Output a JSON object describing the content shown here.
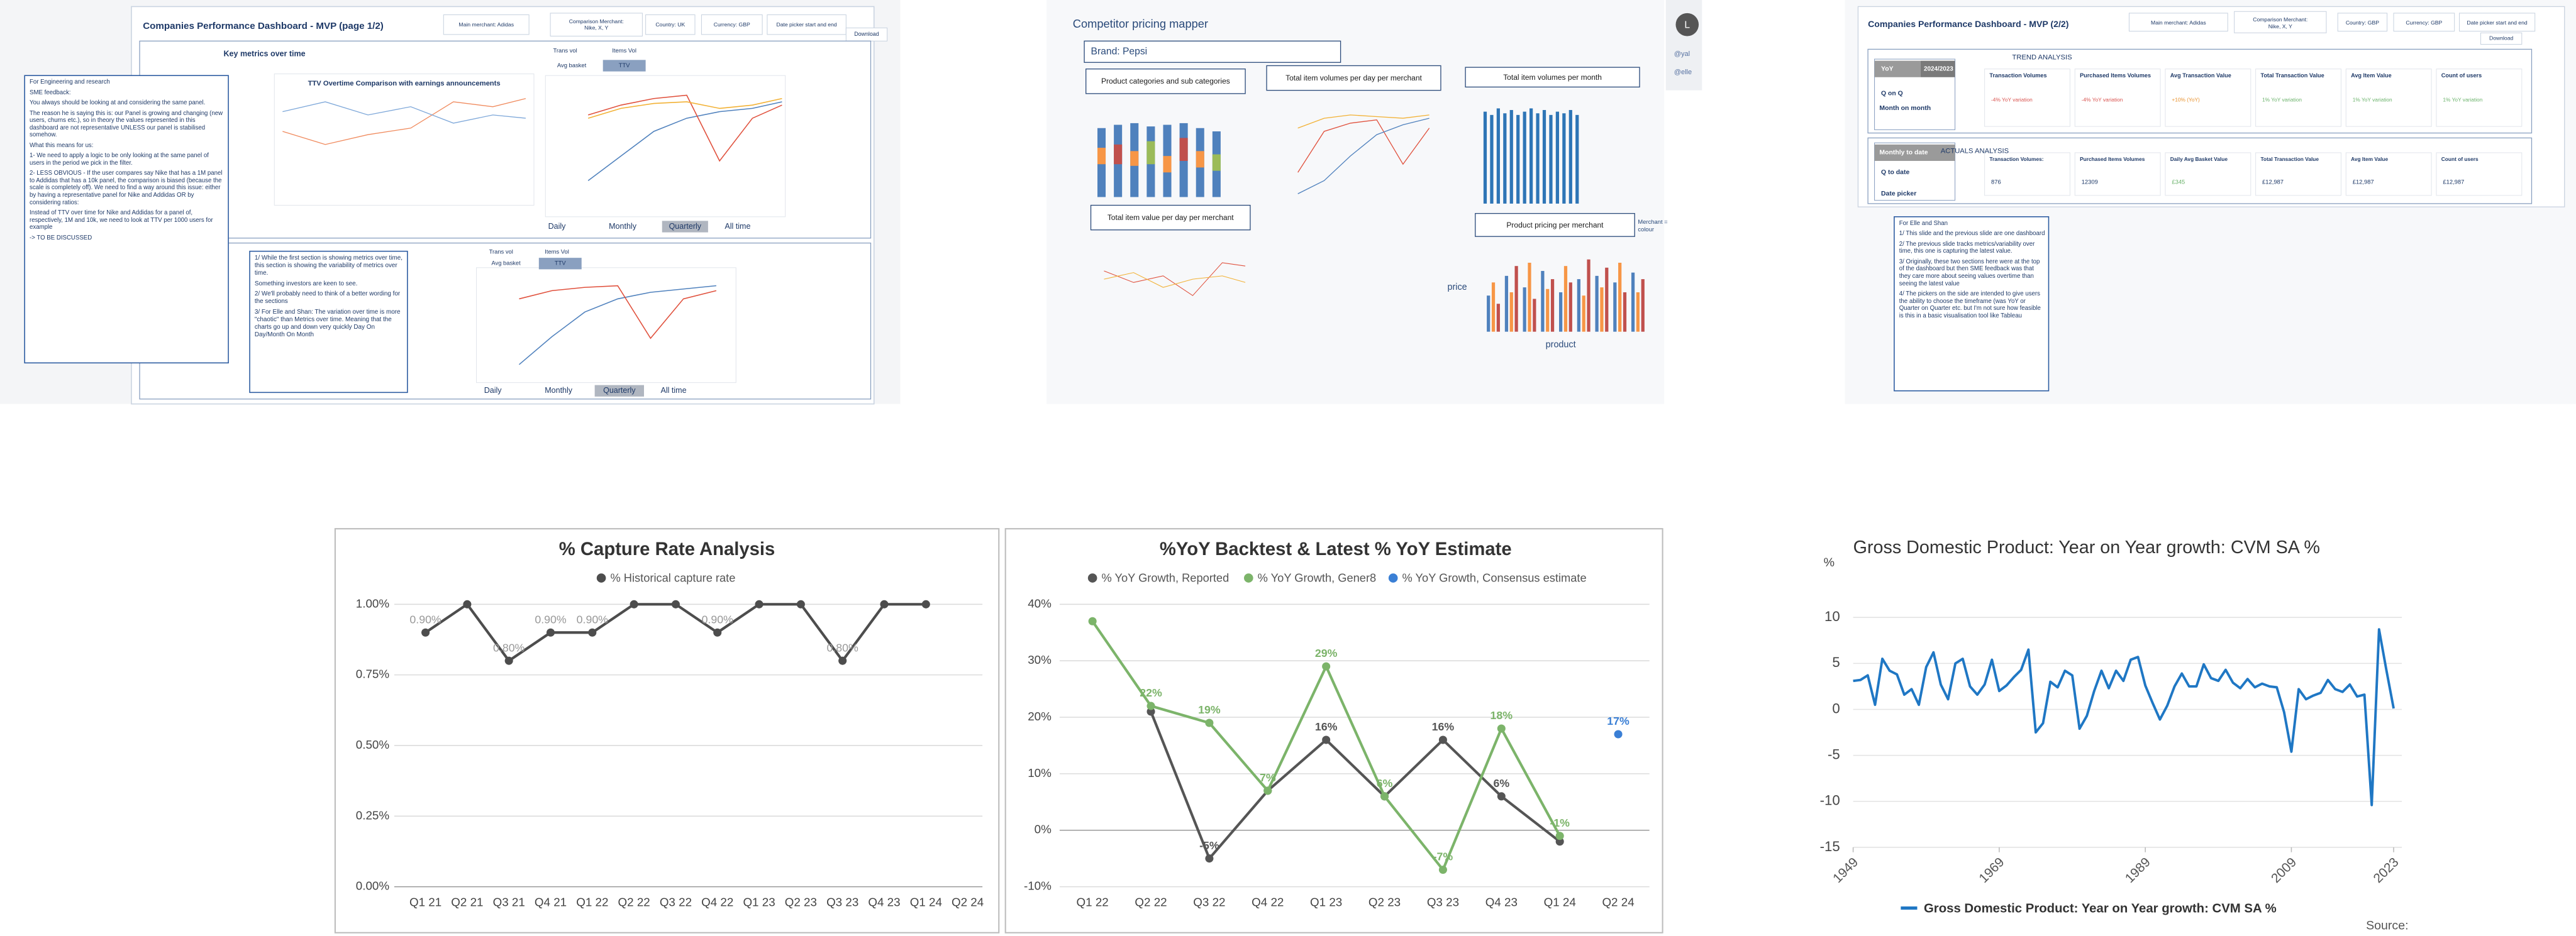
{
  "page1": {
    "title": "Companies Performance Dashboard - MVP (page 1/2)",
    "filters": [
      "Main merchant: Adidas",
      [
        "Comparison Merchant:",
        "Nike, X, Y"
      ],
      "Country: UK",
      "Currency: GBP",
      "Date picker start and end"
    ],
    "download": "Download",
    "section_title": "Key metrics over time",
    "chart_title": "TTV Overtime Comparison with earnings announcements",
    "toggles": [
      "Trans vol",
      "Items Vol",
      "Avg basket",
      "TTV"
    ],
    "periods": [
      "Daily",
      "Monthly",
      "Quarterly",
      "All time"
    ],
    "engineering_note": [
      "For Engineering and research",
      "SME feedback:",
      "You always should be looking at and considering the same panel.",
      "The reason he is saying this is: our Panel is growing and changing (new users, churns etc.), so in theory the values represented in this dashboard are not representative UNLESS our panel is stabilised somehow.",
      "What this means for us:",
      "1- We need to apply a logic to be only looking at the same panel of users in the period we pick in the filter.",
      "2- LESS OBVIOUS - If the user compares say Nike that has a 1M panel to Addidas that has a 10k panel, the comparison is biased (because the scale is completely off). We need to find a way around this issue: either by having a representative panel for Nike and Addidas OR by considering ratios:",
      "Instead of TTV over time for Nike and Addidas for a panel of, respectively, 1M and 10k, we need to look at TTV per 1000 users for example",
      "-> TO BE DISCUSSED"
    ],
    "variability_note": [
      "1/ While the first section is showing metrics over time, this section is showing the variability of metrics over time.",
      "Something investors are keen to see.",
      "2/ We'll probably need to think of a better wording for the sections",
      "3/ For Elle and Shan: The variation over time is more \"chaotic\" than Metrics over time. Meaning that the charts go up and down very quickly Day On Day/Month On Month"
    ]
  },
  "pricing": {
    "title": "Competitor pricing mapper",
    "brand": "Brand: Pepsi",
    "chart_titles": [
      "Product categories and sub categories",
      "Total item volumes per day per merchant",
      "Total item volumes per month",
      "Total item value per day per merchant",
      "Product pricing per merchant"
    ],
    "note": "Merchant = colour",
    "y_label": "price",
    "x_label": "product",
    "avatar": "L",
    "mentions": [
      "@yal",
      "@elle"
    ]
  },
  "page2": {
    "title": "Companies Performance Dashboard - MVP (2/2)",
    "filters": [
      "Main merchant: Adidas",
      [
        "Comparison Merchant:",
        "Nike, X, Y"
      ],
      "Country: GBP",
      "Currency: GBP",
      "Date picker start and end"
    ],
    "download": "Download",
    "trend": {
      "title": "TREND ANALYSIS",
      "periods": [
        "YoY",
        "2024/2023",
        "Q on Q",
        "Month on month"
      ],
      "metrics": [
        {
          "name": "Transaction Volumes",
          "value": "-4% YoY variation",
          "color": "#d9534f"
        },
        {
          "name": "Purchased Items Volumes",
          "value": "-4% YoY variation",
          "color": "#d9534f"
        },
        {
          "name": "Avg Transaction Value",
          "value": "+10% (YoY)",
          "color": "#e8922e"
        },
        {
          "name": "Total Transaction Value",
          "value": "1% YoY variation",
          "color": "#6cb36c"
        },
        {
          "name": "Avg Item Value",
          "value": "1% YoY variation",
          "color": "#6cb36c"
        },
        {
          "name": "Count of users",
          "value": "1% YoY variation",
          "color": "#6cb36c"
        }
      ]
    },
    "actuals": {
      "title": "ACTUALS ANALYSIS",
      "periods": [
        "Monthly to date",
        "Q to date",
        "Date picker"
      ],
      "metrics": [
        {
          "name": "Transaction Volumes:",
          "value": "876",
          "color": "#1f3a68"
        },
        {
          "name": "Purchased Items Volumes",
          "value": "12309",
          "color": "#1f3a68"
        },
        {
          "name": "Daily Avg Basket Value",
          "value": "£345",
          "color": "#6cb36c"
        },
        {
          "name": "Total Transaction Value",
          "value": "£12,987",
          "color": "#1f3a68"
        },
        {
          "name": "Avg Item Value",
          "value": "£12,987",
          "color": "#1f3a68"
        },
        {
          "name": "Count of users",
          "value": "£12,987",
          "color": "#1f3a68"
        }
      ]
    },
    "note": [
      "For Elle and Shan",
      "1/ This slide and the previous slide are one dashboard",
      "2/ The previous slide tracks metrics/variability over time, this one is capturing the latest value.",
      "3/ Originally, these two sections here were at the top of the dashboard but then SME feedback was that they care more about seeing values overtime than seeing the latest value",
      "4/ The pickers on the side are intended to give users the ability to choose the timeframe (was YoY or Quarter on Quarter etc. but I'm not sure how feasible is this in a basic visualisation tool like Tableau"
    ]
  },
  "chart_data": [
    {
      "type": "line",
      "title": "% Capture Rate Analysis",
      "categories": [
        "Q1 21",
        "Q2 21",
        "Q3 21",
        "Q4 21",
        "Q1 22",
        "Q2 22",
        "Q3 22",
        "Q4 22",
        "Q1 23",
        "Q2 23",
        "Q3 23",
        "Q4 23",
        "Q1 24",
        "Q2 24"
      ],
      "series": [
        {
          "name": "% Historical capture rate",
          "color": "#4d4d4d",
          "values": [
            0.9,
            1.0,
            0.8,
            0.9,
            0.9,
            1.0,
            1.0,
            0.9,
            1.0,
            1.0,
            0.8,
            1.0,
            1.0,
            null
          ],
          "value_labels": [
            "0.90%",
            null,
            "0.80%",
            "0.90%",
            "0.90%",
            null,
            null,
            "0.90%",
            null,
            null,
            "0.80%",
            null,
            null,
            null
          ]
        }
      ],
      "ylim": [
        0,
        1
      ],
      "yticks": [
        {
          "value": 0,
          "label": "0.00%"
        },
        {
          "value": 0.25,
          "label": "0.25%"
        },
        {
          "value": 0.5,
          "label": "0.50%"
        },
        {
          "value": 0.75,
          "label": "0.75%"
        },
        {
          "value": 1,
          "label": "1.00%"
        }
      ],
      "grid": true,
      "legend": "top"
    },
    {
      "type": "line",
      "title": "%YoY Backtest & Latest % YoY Estimate",
      "categories": [
        "Q1 22",
        "Q2 22",
        "Q3 22",
        "Q4 22",
        "Q1 23",
        "Q2 23",
        "Q3 23",
        "Q4 23",
        "Q1 24",
        "Q2 24"
      ],
      "series": [
        {
          "name": "% YoY Growth, Reported",
          "color": "#555555",
          "values": [
            null,
            21,
            -5,
            7,
            16,
            6,
            16,
            6,
            -2,
            null
          ],
          "value_labels": [
            null,
            null,
            "-5%",
            null,
            "16%",
            null,
            "16%",
            "6%",
            null,
            null
          ]
        },
        {
          "name": "% YoY Growth, Gener8",
          "color": "#7cb46a",
          "values": [
            37,
            22,
            19,
            7,
            29,
            6,
            -7,
            18,
            -1,
            null
          ],
          "value_labels": [
            null,
            "22%",
            "19%",
            "7%",
            "29%",
            "6%",
            "-7%",
            "18%",
            "-1%",
            null
          ]
        },
        {
          "name": "% YoY Growth, Consensus estimate",
          "color": "#3a7fd5",
          "values": [
            null,
            null,
            null,
            null,
            null,
            null,
            null,
            null,
            null,
            17
          ],
          "value_labels": [
            null,
            null,
            null,
            null,
            null,
            null,
            null,
            null,
            null,
            "17%"
          ]
        }
      ],
      "ylim": [
        -10,
        40
      ],
      "yticks": [
        {
          "value": -10,
          "label": "-10%"
        },
        {
          "value": 0,
          "label": "0%"
        },
        {
          "value": 10,
          "label": "10%"
        },
        {
          "value": 20,
          "label": "20%"
        },
        {
          "value": 30,
          "label": "30%"
        },
        {
          "value": 40,
          "label": "40%"
        }
      ],
      "grid": true,
      "legend": "top"
    },
    {
      "type": "line",
      "title": "Gross Domestic Product: Year on Year growth: CVM SA %",
      "y_label": "%",
      "source": "Source:",
      "x": [
        1949,
        1950,
        1951,
        1952,
        1953,
        1954,
        1955,
        1956,
        1957,
        1958,
        1959,
        1960,
        1961,
        1962,
        1963,
        1964,
        1965,
        1966,
        1967,
        1968,
        1969,
        1970,
        1971,
        1972,
        1973,
        1974,
        1975,
        1976,
        1977,
        1978,
        1979,
        1980,
        1981,
        1982,
        1983,
        1984,
        1985,
        1986,
        1987,
        1988,
        1989,
        1990,
        1991,
        1992,
        1993,
        1994,
        1995,
        1996,
        1997,
        1998,
        1999,
        2000,
        2001,
        2002,
        2003,
        2004,
        2005,
        2006,
        2007,
        2008,
        2009,
        2010,
        2011,
        2012,
        2013,
        2014,
        2015,
        2016,
        2017,
        2018,
        2019,
        2020,
        2021,
        2022,
        2023
      ],
      "series": [
        {
          "name": "Gross Domestic Product: Year on Year growth: CVM SA %",
          "color": "#1f77c4",
          "values": [
            3.1,
            3.2,
            3.7,
            0.5,
            5.5,
            4.2,
            3.8,
            1.6,
            2.2,
            0.5,
            4.6,
            6.2,
            2.7,
            1.1,
            5.0,
            5.5,
            2.5,
            1.6,
            2.7,
            5.4,
            2.0,
            2.6,
            3.5,
            4.3,
            6.5,
            -2.5,
            -1.5,
            3.0,
            2.4,
            4.2,
            3.7,
            -2.1,
            -0.7,
            2.0,
            4.2,
            2.3,
            4.2,
            3.1,
            5.4,
            5.7,
            2.6,
            0.7,
            -1.1,
            0.4,
            2.5,
            3.9,
            2.5,
            2.5,
            4.9,
            3.4,
            3.1,
            4.3,
            2.9,
            2.3,
            3.3,
            2.4,
            2.8,
            2.5,
            2.4,
            -0.3,
            -4.6,
            2.2,
            1.1,
            1.5,
            1.8,
            3.2,
            2.2,
            1.9,
            2.7,
            1.4,
            1.6,
            -10.4,
            8.7,
            4.3,
            0.1
          ]
        }
      ],
      "xlim": [
        1949,
        2023
      ],
      "xticks": [
        1949,
        1969,
        1989,
        2009,
        2023
      ],
      "ylim": [
        -15,
        15
      ],
      "yticks": [
        -15,
        -10,
        -5,
        0,
        5,
        10
      ],
      "grid": true,
      "legend": "bottom"
    }
  ]
}
